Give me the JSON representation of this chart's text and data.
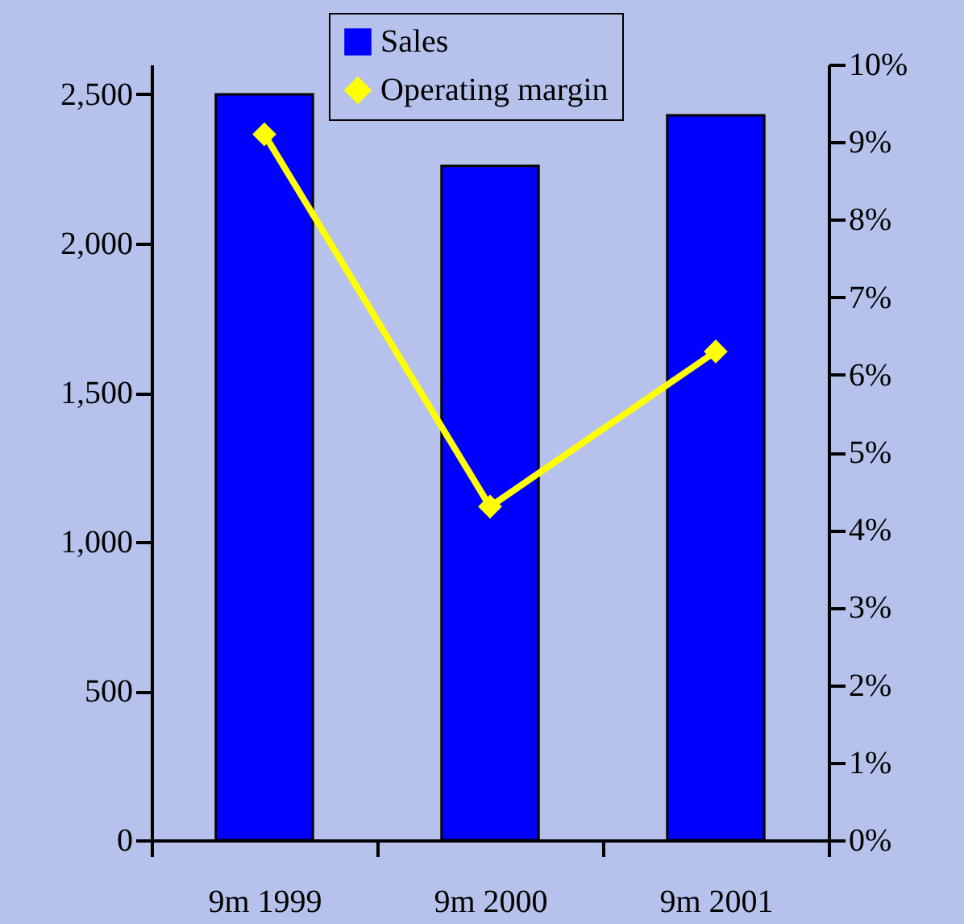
{
  "chart_data": {
    "type": "bar",
    "categories": [
      "9m 1999",
      "9m 2000",
      "9m 2001"
    ],
    "series": [
      {
        "name": "Sales",
        "color": "#0000ff",
        "values": [
          2500,
          2260,
          2430
        ]
      },
      {
        "name": "Operating margin",
        "type": "line",
        "axis": "y2",
        "color": "#ffff00",
        "values": [
          9.1,
          4.3,
          6.3
        ]
      }
    ],
    "ylim": [
      0,
      2600
    ],
    "yticks": [
      {
        "value": 0,
        "label": "0"
      },
      {
        "value": 500,
        "label": "500"
      },
      {
        "value": 1000,
        "label": "1,000"
      },
      {
        "value": 1500,
        "label": "1,500"
      },
      {
        "value": 2000,
        "label": "2,000"
      },
      {
        "value": 2500,
        "label": "2,500"
      }
    ],
    "y2lim": [
      0,
      10
    ],
    "y2ticks": [
      {
        "value": 0,
        "label": "0%"
      },
      {
        "value": 1,
        "label": "1%"
      },
      {
        "value": 2,
        "label": "2%"
      },
      {
        "value": 3,
        "label": "3%"
      },
      {
        "value": 4,
        "label": "4%"
      },
      {
        "value": 5,
        "label": "5%"
      },
      {
        "value": 6,
        "label": "6%"
      },
      {
        "value": 7,
        "label": "7%"
      },
      {
        "value": 8,
        "label": "8%"
      },
      {
        "value": 9,
        "label": "9%"
      },
      {
        "value": 10,
        "label": "10%"
      }
    ],
    "legend": "top",
    "marker": "diamond",
    "grid": false
  }
}
